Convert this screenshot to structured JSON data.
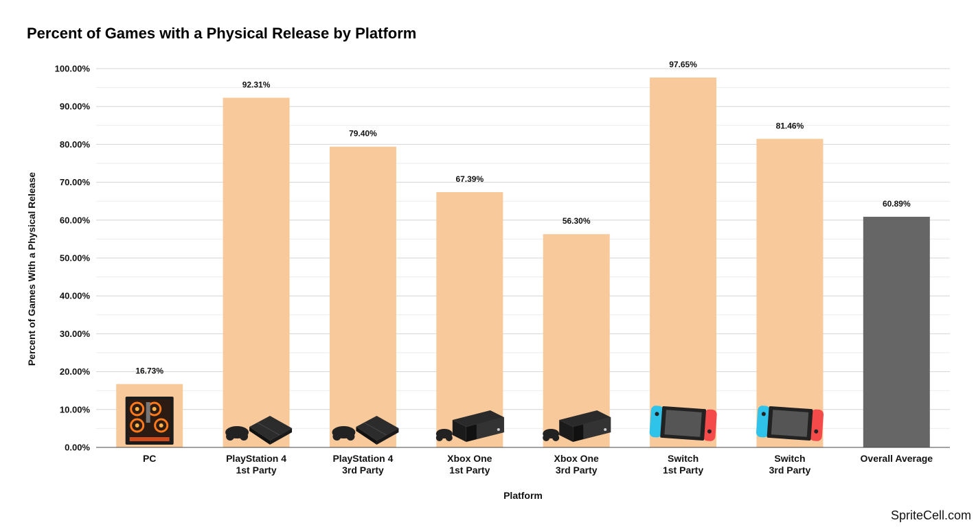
{
  "chart_data": {
    "type": "bar",
    "title": "Percent of Games with a Physical Release by Platform",
    "xlabel": "Platform",
    "ylabel": "Percent of Games With a Physical Release",
    "ylim": [
      0,
      100
    ],
    "yticks": [
      "0.00%",
      "10.00%",
      "20.00%",
      "30.00%",
      "40.00%",
      "50.00%",
      "60.00%",
      "70.00%",
      "80.00%",
      "90.00%",
      "100.00%"
    ],
    "grid": true,
    "categories": [
      {
        "lines": [
          "PC"
        ],
        "icon": "pc-case-icon"
      },
      {
        "lines": [
          "PlayStation 4",
          "1st Party"
        ],
        "icon": "ps4-console-icon"
      },
      {
        "lines": [
          "PlayStation 4",
          "3rd Party"
        ],
        "icon": "ps4-console-icon"
      },
      {
        "lines": [
          "Xbox One",
          "1st Party"
        ],
        "icon": "xbox-one-console-icon"
      },
      {
        "lines": [
          "Xbox One",
          "3rd Party"
        ],
        "icon": "xbox-one-console-icon"
      },
      {
        "lines": [
          "Switch",
          "1st Party"
        ],
        "icon": "switch-console-icon"
      },
      {
        "lines": [
          "Switch",
          "3rd Party"
        ],
        "icon": "switch-console-icon"
      },
      {
        "lines": [
          "Overall Average"
        ],
        "icon": ""
      }
    ],
    "values": [
      16.73,
      92.31,
      79.4,
      67.39,
      56.3,
      97.65,
      81.46,
      60.89
    ],
    "data_labels": [
      "16.73%",
      "92.31%",
      "79.40%",
      "67.39%",
      "56.30%",
      "97.65%",
      "81.46%",
      "60.89%"
    ],
    "colors": {
      "bar": "#f8c99b",
      "highlight_bar": "#666666",
      "grid": "#d4d4d4",
      "baseline": "#444444"
    },
    "highlight_index": 7
  },
  "watermark": "SpriteCell.com"
}
